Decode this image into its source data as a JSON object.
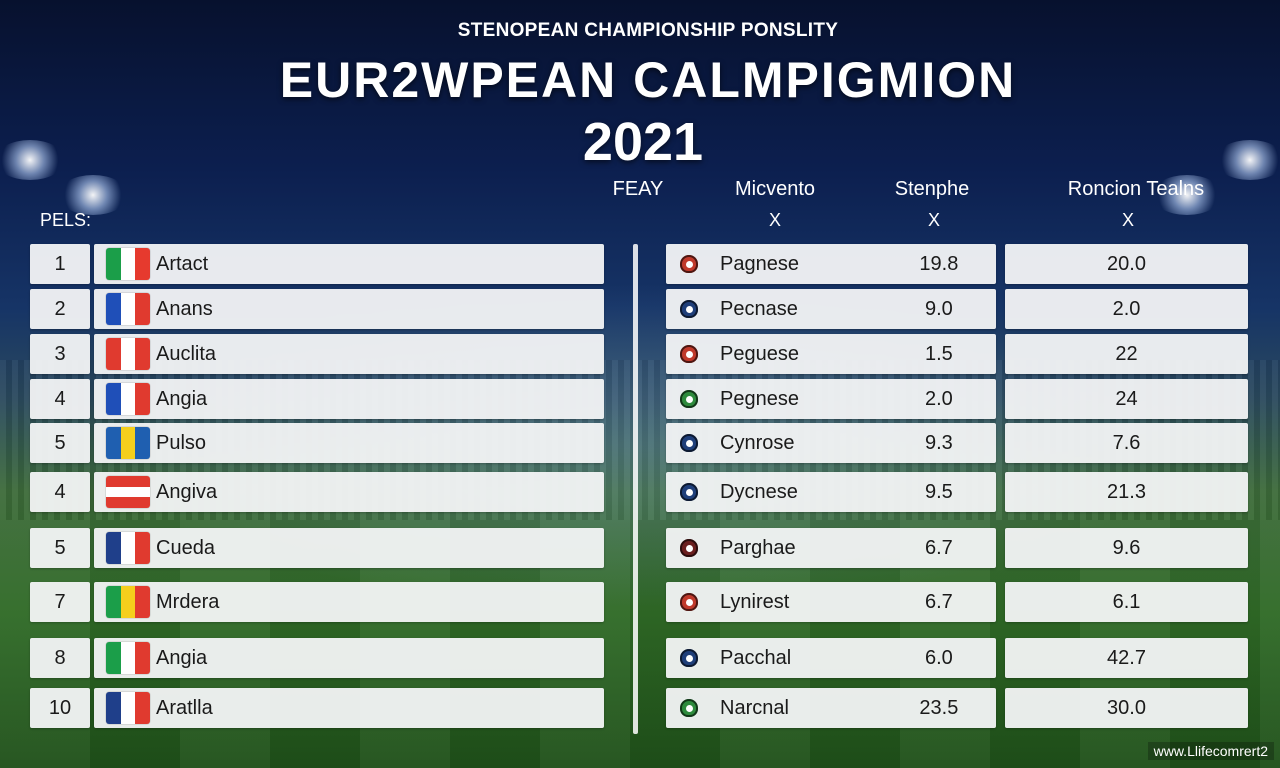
{
  "header": {
    "eyebrow": "STENOPEAN CHAMPIONSHIP PONSLITY",
    "title": "EUR2WPEAN CALMPIGMION",
    "year": "2021"
  },
  "columns": {
    "rank_label": "PELS:",
    "col1": "FEAY",
    "col2": "Micvento",
    "col3": "Stenphe",
    "col4": "Roncion Tealns",
    "x_mark": "X"
  },
  "rows": [
    {
      "rank": "1",
      "team": "Artact",
      "flag": [
        "#1b9e49",
        "#ffffff",
        "#e63a2e"
      ],
      "flag_dir": "v",
      "club": "Pagnese",
      "crest": "#c0392b",
      "v1": "19.8",
      "v2": "20.0"
    },
    {
      "rank": "2",
      "team": "Anans",
      "flag": [
        "#1f4fb8",
        "#ffffff",
        "#e03a2f"
      ],
      "flag_dir": "v",
      "club": "Pecnase",
      "crest": "#1f3f7a",
      "v1": "9.0",
      "v2": "2.0"
    },
    {
      "rank": "3",
      "team": "Auclita",
      "flag": [
        "#e03a2f",
        "#ffffff",
        "#e03a2f"
      ],
      "flag_dir": "v",
      "club": "Peguese",
      "crest": "#c0392b",
      "v1": "1.5",
      "v2": "22"
    },
    {
      "rank": "4",
      "team": "Angia",
      "flag": [
        "#1f4fb8",
        "#ffffff",
        "#e03a2f"
      ],
      "flag_dir": "v",
      "club": "Pegnese",
      "crest": "#2e8b3d",
      "v1": "2.0",
      "v2": "24"
    },
    {
      "rank": "5",
      "team": "Pulso",
      "flag": [
        "#1f5fb0",
        "#f5cf1c",
        "#1f5fb0"
      ],
      "flag_dir": "v",
      "club": "Cynrose",
      "crest": "#1f3f7a",
      "v1": "9.3",
      "v2": "7.6"
    },
    {
      "rank": "4",
      "team": "Angiva",
      "flag": [
        "#e03a2f",
        "#ffffff",
        "#e03a2f"
      ],
      "flag_dir": "h",
      "club": "Dycnese",
      "crest": "#1f3f7a",
      "v1": "9.5",
      "v2": "21.3"
    },
    {
      "rank": "5",
      "team": "Cueda",
      "flag": [
        "#1f3f8a",
        "#ffffff",
        "#e03a2f"
      ],
      "flag_dir": "v",
      "club": "Parghae",
      "crest": "#6b1f1f",
      "v1": "6.7",
      "v2": "9.6"
    },
    {
      "rank": "7",
      "team": "Mrdera",
      "flag": [
        "#1b9e49",
        "#f5cf1c",
        "#e03a2f"
      ],
      "flag_dir": "v",
      "club": "Lynirest",
      "crest": "#c0392b",
      "v1": "6.7",
      "v2": "6.1"
    },
    {
      "rank": "8",
      "team": "Angia",
      "flag": [
        "#1b9e49",
        "#ffffff",
        "#e03a2f"
      ],
      "flag_dir": "v",
      "club": "Pacchal",
      "crest": "#1f3f7a",
      "v1": "6.0",
      "v2": "42.7"
    },
    {
      "rank": "10",
      "team": "Aratlla",
      "flag": [
        "#1f3f8a",
        "#ffffff",
        "#e03a2f"
      ],
      "flag_dir": "v",
      "club": "Narcnal",
      "crest": "#2e8b3d",
      "v1": "23.5",
      "v2": "30.0"
    }
  ],
  "watermark": "www.Llifecomrert2"
}
